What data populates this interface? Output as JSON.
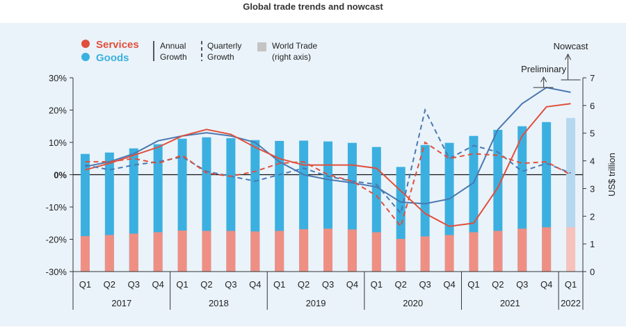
{
  "chart_data": {
    "type": "bar",
    "title": "Global trade trends and nowcast",
    "categories": [
      "Q1",
      "Q2",
      "Q3",
      "Q4",
      "Q1",
      "Q2",
      "Q3",
      "Q4",
      "Q1",
      "Q2",
      "Q3",
      "Q4",
      "Q1",
      "Q2",
      "Q3",
      "Q4",
      "Q1",
      "Q2",
      "Q3",
      "Q4",
      "Q1"
    ],
    "years": [
      {
        "label": "2017",
        "start": 0,
        "end": 3
      },
      {
        "label": "2018",
        "start": 4,
        "end": 7
      },
      {
        "label": "2019",
        "start": 8,
        "end": 11
      },
      {
        "label": "2020",
        "start": 12,
        "end": 15
      },
      {
        "label": "2021",
        "start": 16,
        "end": 19
      },
      {
        "label": "2022",
        "start": 20,
        "end": 20
      }
    ],
    "left_axis": {
      "ticks": [
        "30%",
        "20%",
        "10%",
        "0%",
        "-10%",
        "-20%",
        "-30%"
      ],
      "values": [
        30,
        20,
        10,
        0,
        -10,
        -20,
        -30
      ],
      "ylim": [
        -30,
        30
      ]
    },
    "right_axis": {
      "label": "US$ trillion",
      "ticks": [
        "7",
        "6",
        "5",
        "4",
        "3",
        "2",
        "1",
        "0"
      ],
      "values": [
        7,
        6,
        5,
        4,
        3,
        2,
        1,
        0
      ],
      "ylim": [
        0,
        7
      ]
    },
    "bars": [
      {
        "name": "Goods",
        "color": "#3bb0e0",
        "values": [
          4.25,
          4.3,
          4.45,
          4.6,
          4.8,
          4.85,
          4.82,
          4.75,
          4.72,
          4.73,
          4.7,
          4.65,
          4.5,
          3.78,
          4.57,
          4.65,
          4.9,
          5.12,
          5.25,
          5.4,
          5.55
        ]
      },
      {
        "name": "Services",
        "color": "#ef8f84",
        "values": [
          1.28,
          1.32,
          1.37,
          1.42,
          1.48,
          1.47,
          1.47,
          1.45,
          1.47,
          1.53,
          1.55,
          1.52,
          1.42,
          1.18,
          1.27,
          1.32,
          1.42,
          1.47,
          1.55,
          1.6,
          1.6
        ]
      }
    ],
    "nowcast_index": 20,
    "nowcast_colors": {
      "goods": "#b6d8ef",
      "services": "#f6c2bb"
    },
    "lines": [
      {
        "name": "Goods annual growth",
        "color": "#4a78b0",
        "style": "solid",
        "values": [
          2.5,
          4,
          6.5,
          10.5,
          12,
          13,
          12,
          10,
          4,
          0,
          -1.5,
          -2.5,
          -3.8,
          -8.5,
          -9,
          -7.5,
          -2.5,
          14,
          22,
          27,
          25.5
        ]
      },
      {
        "name": "Services annual growth",
        "color": "#e0503c",
        "style": "solid",
        "values": [
          1.5,
          3.5,
          6,
          8.5,
          12,
          14,
          12.5,
          8.5,
          5,
          3,
          3,
          3,
          2,
          -5,
          -12,
          -16,
          -15,
          -4,
          12,
          21,
          22
        ]
      },
      {
        "name": "Goods quarterly growth",
        "color": "#4a78b0",
        "style": "dashed",
        "values": [
          3,
          1.5,
          3,
          4,
          5.5,
          1,
          -0.5,
          -2,
          0,
          2,
          -0.5,
          -2,
          -3,
          -12,
          20,
          5,
          9,
          7,
          1,
          3.5,
          0.5
        ]
      },
      {
        "name": "Services quarterly growth",
        "color": "#e0503c",
        "style": "dashed",
        "values": [
          4,
          4,
          5,
          3.5,
          6,
          0.5,
          -0.5,
          1,
          3.5,
          4,
          0,
          -2,
          -6.5,
          -16,
          10,
          5,
          6.5,
          6,
          3.5,
          4,
          0
        ]
      }
    ],
    "legend": {
      "services": "Services",
      "goods": "Goods",
      "annual": [
        "Annual",
        "Growth"
      ],
      "quarterly": [
        "Quarterly",
        "Growth"
      ],
      "world_trade": [
        "World Trade",
        "(right axis)"
      ]
    },
    "annotations": {
      "preliminary": "Preliminary",
      "nowcast": "Nowcast"
    }
  }
}
